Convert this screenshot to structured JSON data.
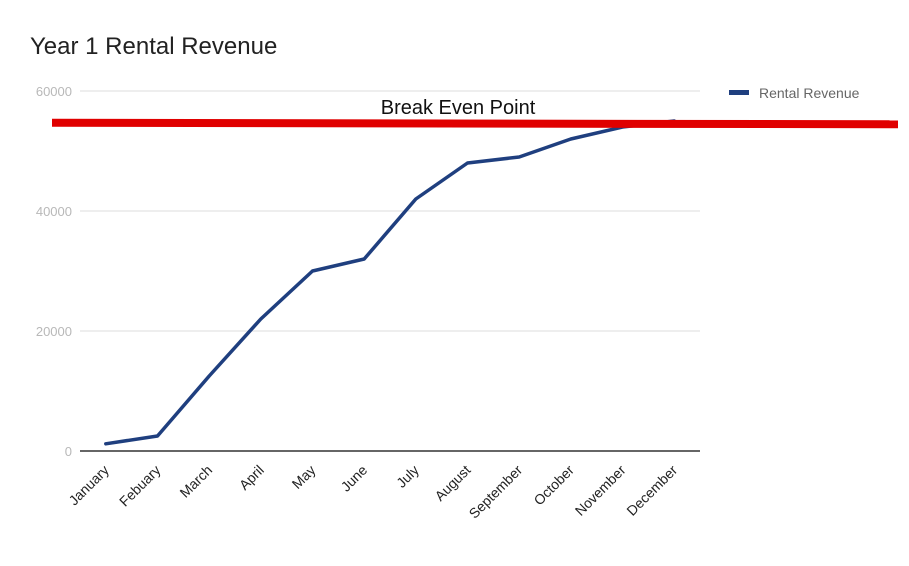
{
  "chart_data": {
    "type": "line",
    "title": "Year 1 Rental Revenue",
    "xlabel": "",
    "ylabel": "",
    "ylim": [
      0,
      60000
    ],
    "yticks": [
      "0",
      "20000",
      "40000",
      "60000"
    ],
    "categories": [
      "January",
      "Febuary",
      "March",
      "April",
      "May",
      "June",
      "July",
      "August",
      "September",
      "October",
      "November",
      "December"
    ],
    "series": [
      {
        "name": "Rental Revenue",
        "color": "#1f3f7f",
        "values": [
          1200,
          2500,
          12500,
          22000,
          30000,
          32000,
          42000,
          48000,
          49000,
          52000,
          54000,
          55000
        ]
      }
    ],
    "reference_line": {
      "label": "Break Even Point",
      "value": 54700,
      "color": "#e00000"
    },
    "legend_position": "top-right",
    "grid": true
  }
}
